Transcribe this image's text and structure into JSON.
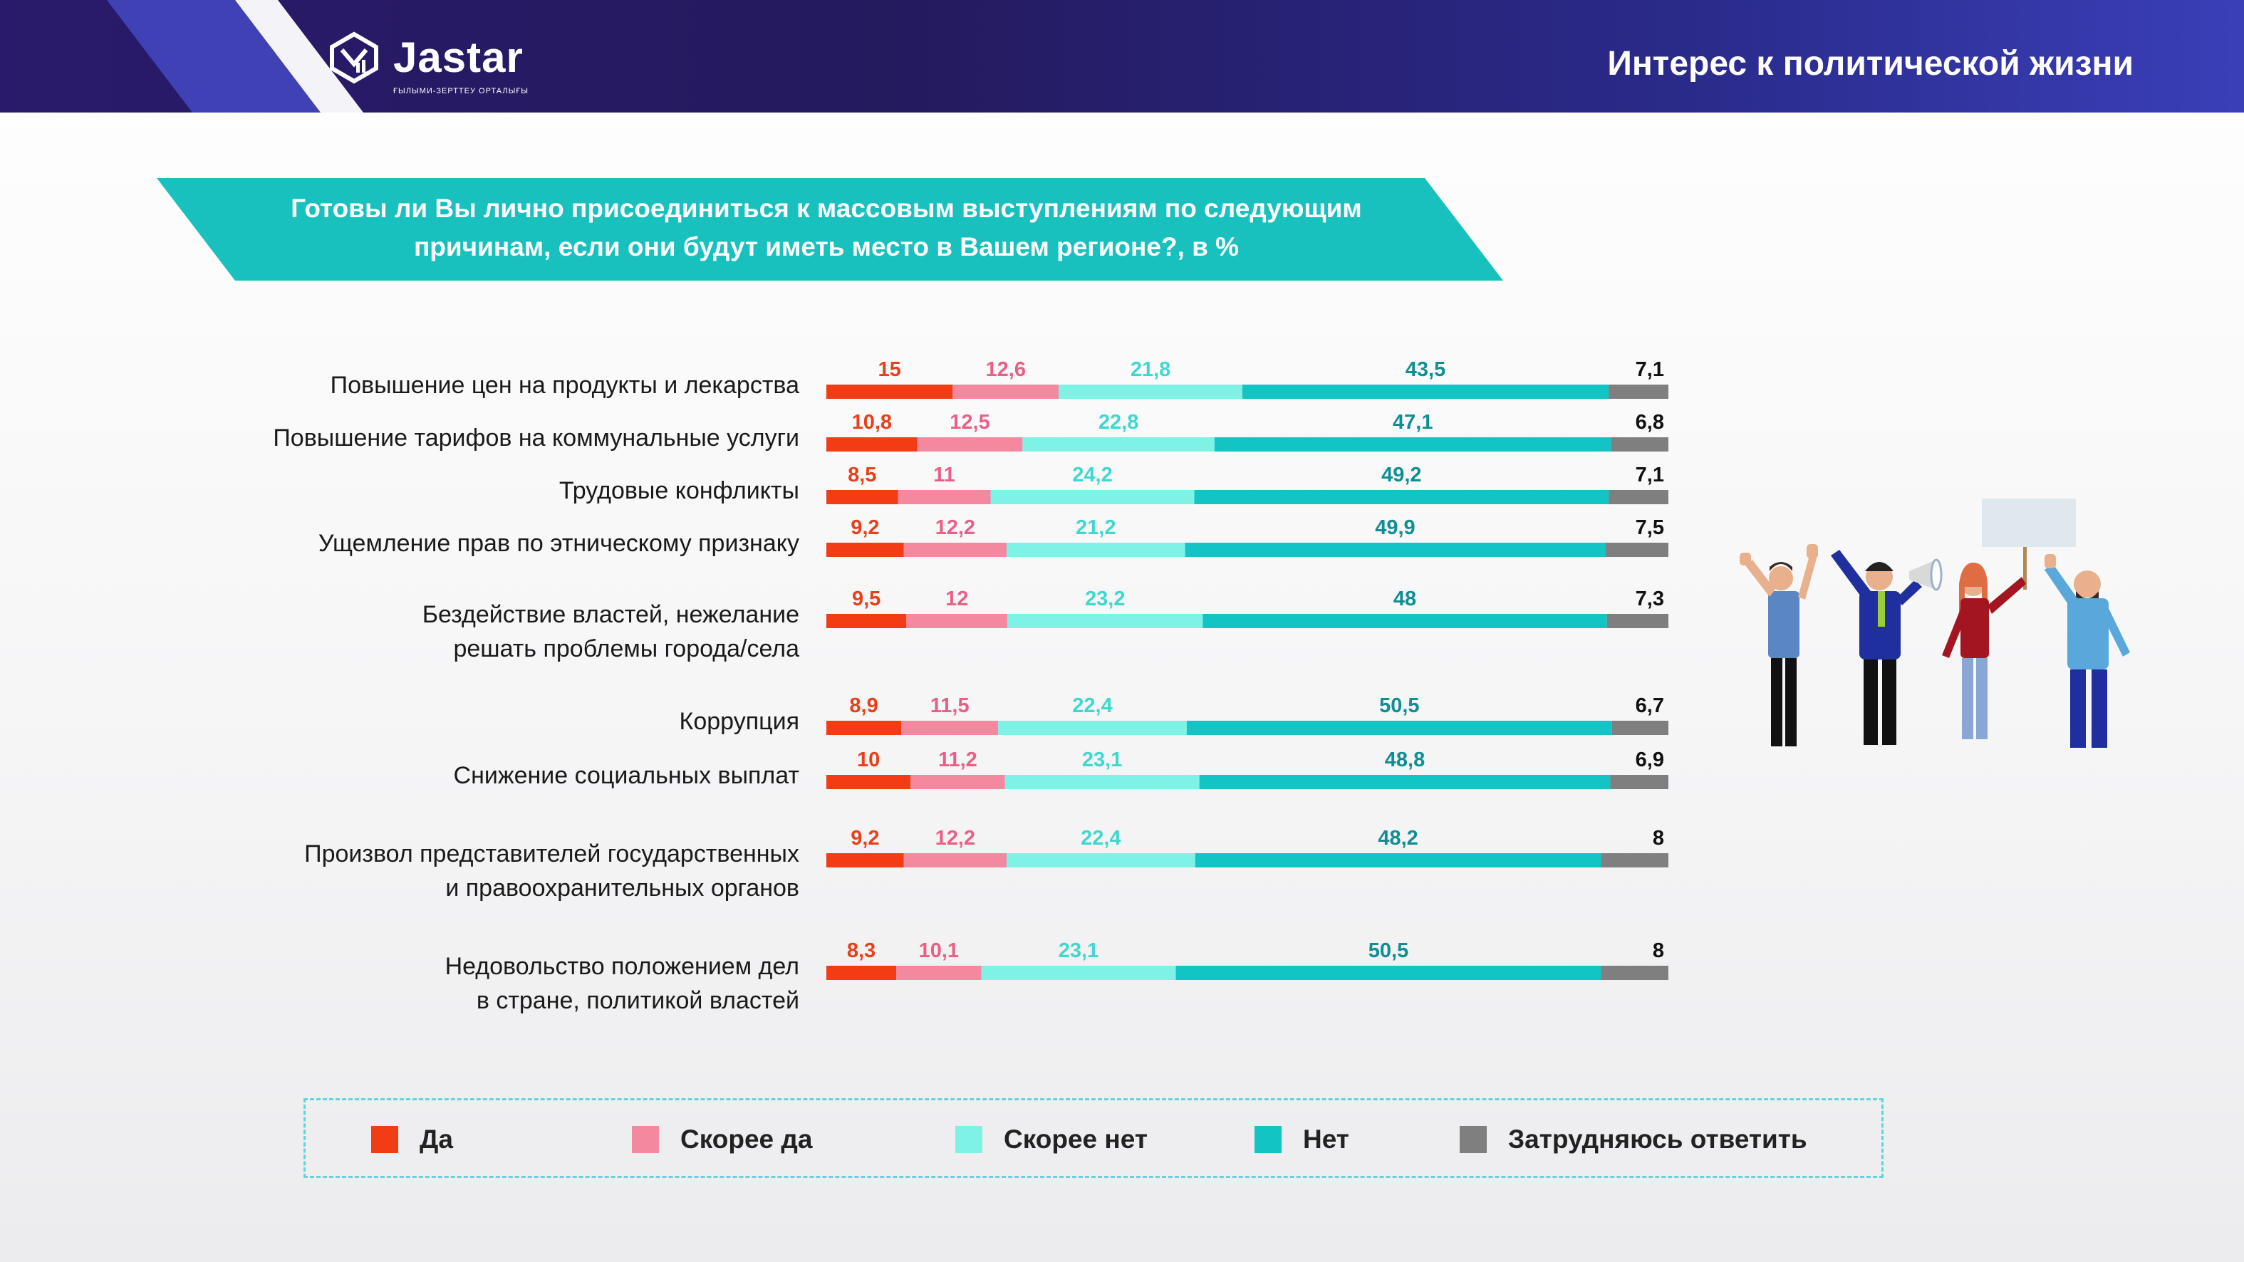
{
  "header": {
    "logo_text": "Jastar",
    "logo_subtitle": "ҒЫЛЫМИ-ЗЕРТТЕУ ОРТАЛЫҒЫ",
    "page_title": "Интерес к политической жизни"
  },
  "question": {
    "text": "Готовы ли Вы лично присоединиться к массовым выступлениям по следующим причинам, если они будут иметь место в Вашем регионе?, в %"
  },
  "colors": {
    "yes": "#f23c14",
    "rather_yes": "#f4889e",
    "rather_no": "#7ff2e6",
    "no": "#13c4c4",
    "hard_to_say": "#7f7f7f",
    "banner": "#18c1be",
    "header": "#261a63"
  },
  "legend": [
    {
      "key": "yes",
      "label": "Да"
    },
    {
      "key": "rather_yes",
      "label": "Скорее да"
    },
    {
      "key": "rather_no",
      "label": "Скорее нет"
    },
    {
      "key": "no",
      "label": "Нет"
    },
    {
      "key": "hard_to_say",
      "label": "Затрудняюсь ответить"
    }
  ],
  "chart_data": {
    "type": "bar",
    "orientation": "horizontal",
    "stacked": true,
    "unit": "%",
    "categories": [
      "Повышение цен на продукты и лекарства",
      "Повышение тарифов на коммунальные услуги",
      "Трудовые конфликты",
      "Ущемление прав по этническому признаку",
      "Бездействие властей, нежелание решать проблемы города/села",
      "Коррупция",
      "Снижение социальных выплат",
      "Произвол представителей государственных и правоохранительных органов",
      "Недовольство положением дел в стране, политикой властей"
    ],
    "category_lines": [
      [
        "Повышение цен на продукты и лекарства"
      ],
      [
        "Повышение тарифов на коммунальные услуги"
      ],
      [
        "Трудовые конфликты"
      ],
      [
        "Ущемление прав по этническому признаку"
      ],
      [
        "Бездействие властей, нежелание",
        "решать проблемы города/села"
      ],
      [
        "Коррупция"
      ],
      [
        "Снижение социальных выплат"
      ],
      [
        "Произвол представителей государственных",
        "и правоохранительных органов"
      ],
      [
        "Недовольство положением дел",
        "в стране, политикой властей"
      ]
    ],
    "series": [
      {
        "name": "Да",
        "key": "yes",
        "values": [
          15,
          10.8,
          8.5,
          9.2,
          9.5,
          8.9,
          10,
          9.2,
          8.3
        ],
        "labels": [
          "15",
          "10,8",
          "8,5",
          "9,2",
          "9,5",
          "8,9",
          "10",
          "9,2",
          "8,3"
        ]
      },
      {
        "name": "Скорее да",
        "key": "rather_yes",
        "values": [
          12.6,
          12.5,
          11,
          12.2,
          12,
          11.5,
          11.2,
          12.2,
          10.1
        ],
        "labels": [
          "12,6",
          "12,5",
          "11",
          "12,2",
          "12",
          "11,5",
          "11,2",
          "12,2",
          "10,1"
        ]
      },
      {
        "name": "Скорее нет",
        "key": "rather_no",
        "values": [
          21.8,
          22.8,
          24.2,
          21.2,
          23.2,
          22.4,
          23.1,
          22.4,
          23.1
        ],
        "labels": [
          "21,8",
          "22,8",
          "24,2",
          "21,2",
          "23,2",
          "22,4",
          "23,1",
          "22,4",
          "23,1"
        ]
      },
      {
        "name": "Нет",
        "key": "no",
        "values": [
          43.5,
          47.1,
          49.2,
          49.9,
          48,
          50.5,
          48.8,
          48.2,
          50.5
        ],
        "labels": [
          "43,5",
          "47,1",
          "49,2",
          "49,9",
          "48",
          "50,5",
          "48,8",
          "48,2",
          "50,5"
        ]
      },
      {
        "name": "Затрудняюсь ответить",
        "key": "hard_to_say",
        "values": [
          7.1,
          6.8,
          7.1,
          7.5,
          7.3,
          6.7,
          6.9,
          8,
          8
        ],
        "labels": [
          "7,1",
          "6,8",
          "7,1",
          "7,5",
          "7,3",
          "6,7",
          "6,9",
          "8",
          "8"
        ]
      }
    ]
  }
}
